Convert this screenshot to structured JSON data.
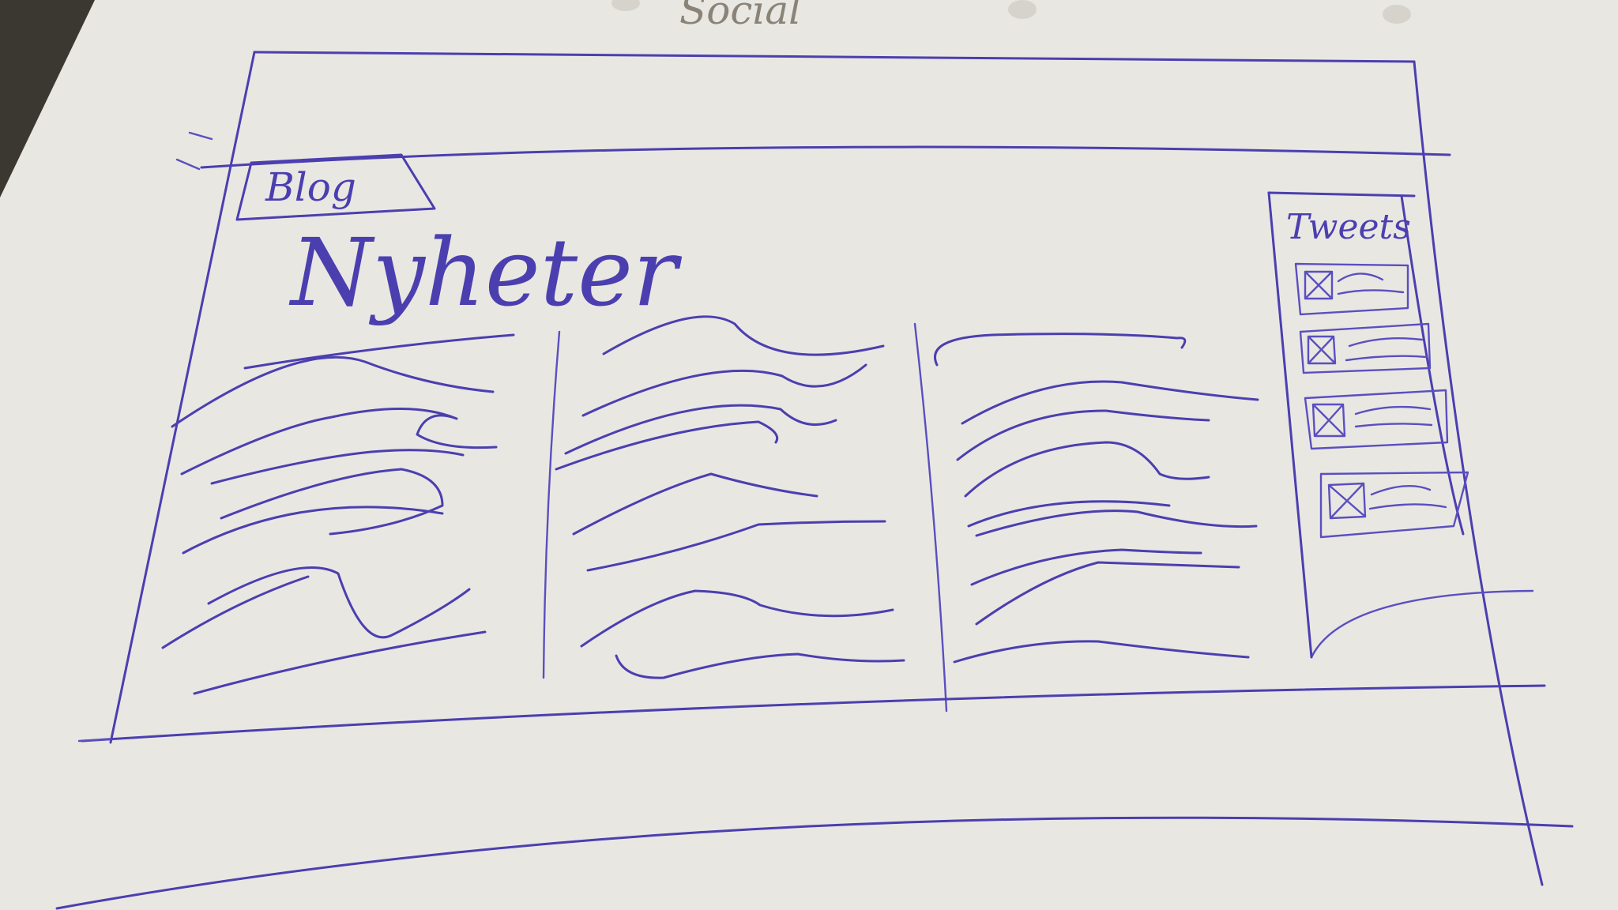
{
  "sheet_title": "Social",
  "logo_label": "Blog",
  "heading": "Nyheter",
  "sidebar": {
    "title": "Tweets",
    "item_count": 4
  },
  "columns": 3,
  "colors": {
    "paper": "#e9e7e2",
    "ink": "#4b3fb0",
    "pencil": "#8a8378"
  }
}
